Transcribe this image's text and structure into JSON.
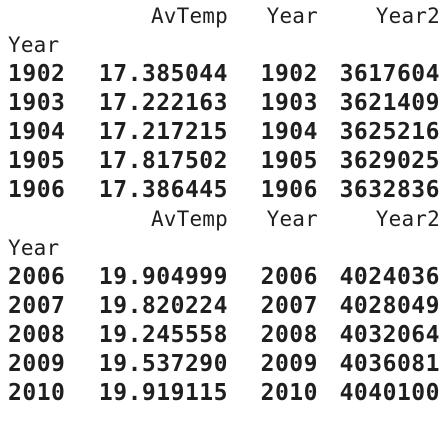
{
  "tables": [
    {
      "columns": [
        "AvTemp",
        "Year",
        "Year2"
      ],
      "index_name": "Year",
      "rows": [
        {
          "index": "1902",
          "avtemp": "17.385044",
          "year": "1902",
          "year2": "3617604"
        },
        {
          "index": "1903",
          "avtemp": "17.222163",
          "year": "1903",
          "year2": "3621409"
        },
        {
          "index": "1904",
          "avtemp": "17.217215",
          "year": "1904",
          "year2": "3625216"
        },
        {
          "index": "1905",
          "avtemp": "17.817502",
          "year": "1905",
          "year2": "3629025"
        },
        {
          "index": "1906",
          "avtemp": "17.386445",
          "year": "1906",
          "year2": "3632836"
        }
      ]
    },
    {
      "columns": [
        "AvTemp",
        "Year",
        "Year2"
      ],
      "index_name": "Year",
      "rows": [
        {
          "index": "2006",
          "avtemp": "19.904999",
          "year": "2006",
          "year2": "4024036"
        },
        {
          "index": "2007",
          "avtemp": "19.820224",
          "year": "2007",
          "year2": "4028049"
        },
        {
          "index": "2008",
          "avtemp": "19.245558",
          "year": "2008",
          "year2": "4032064"
        },
        {
          "index": "2009",
          "avtemp": "19.537290",
          "year": "2009",
          "year2": "4036081"
        },
        {
          "index": "2010",
          "avtemp": "19.919115",
          "year": "2010",
          "year2": "4040100"
        }
      ]
    }
  ]
}
